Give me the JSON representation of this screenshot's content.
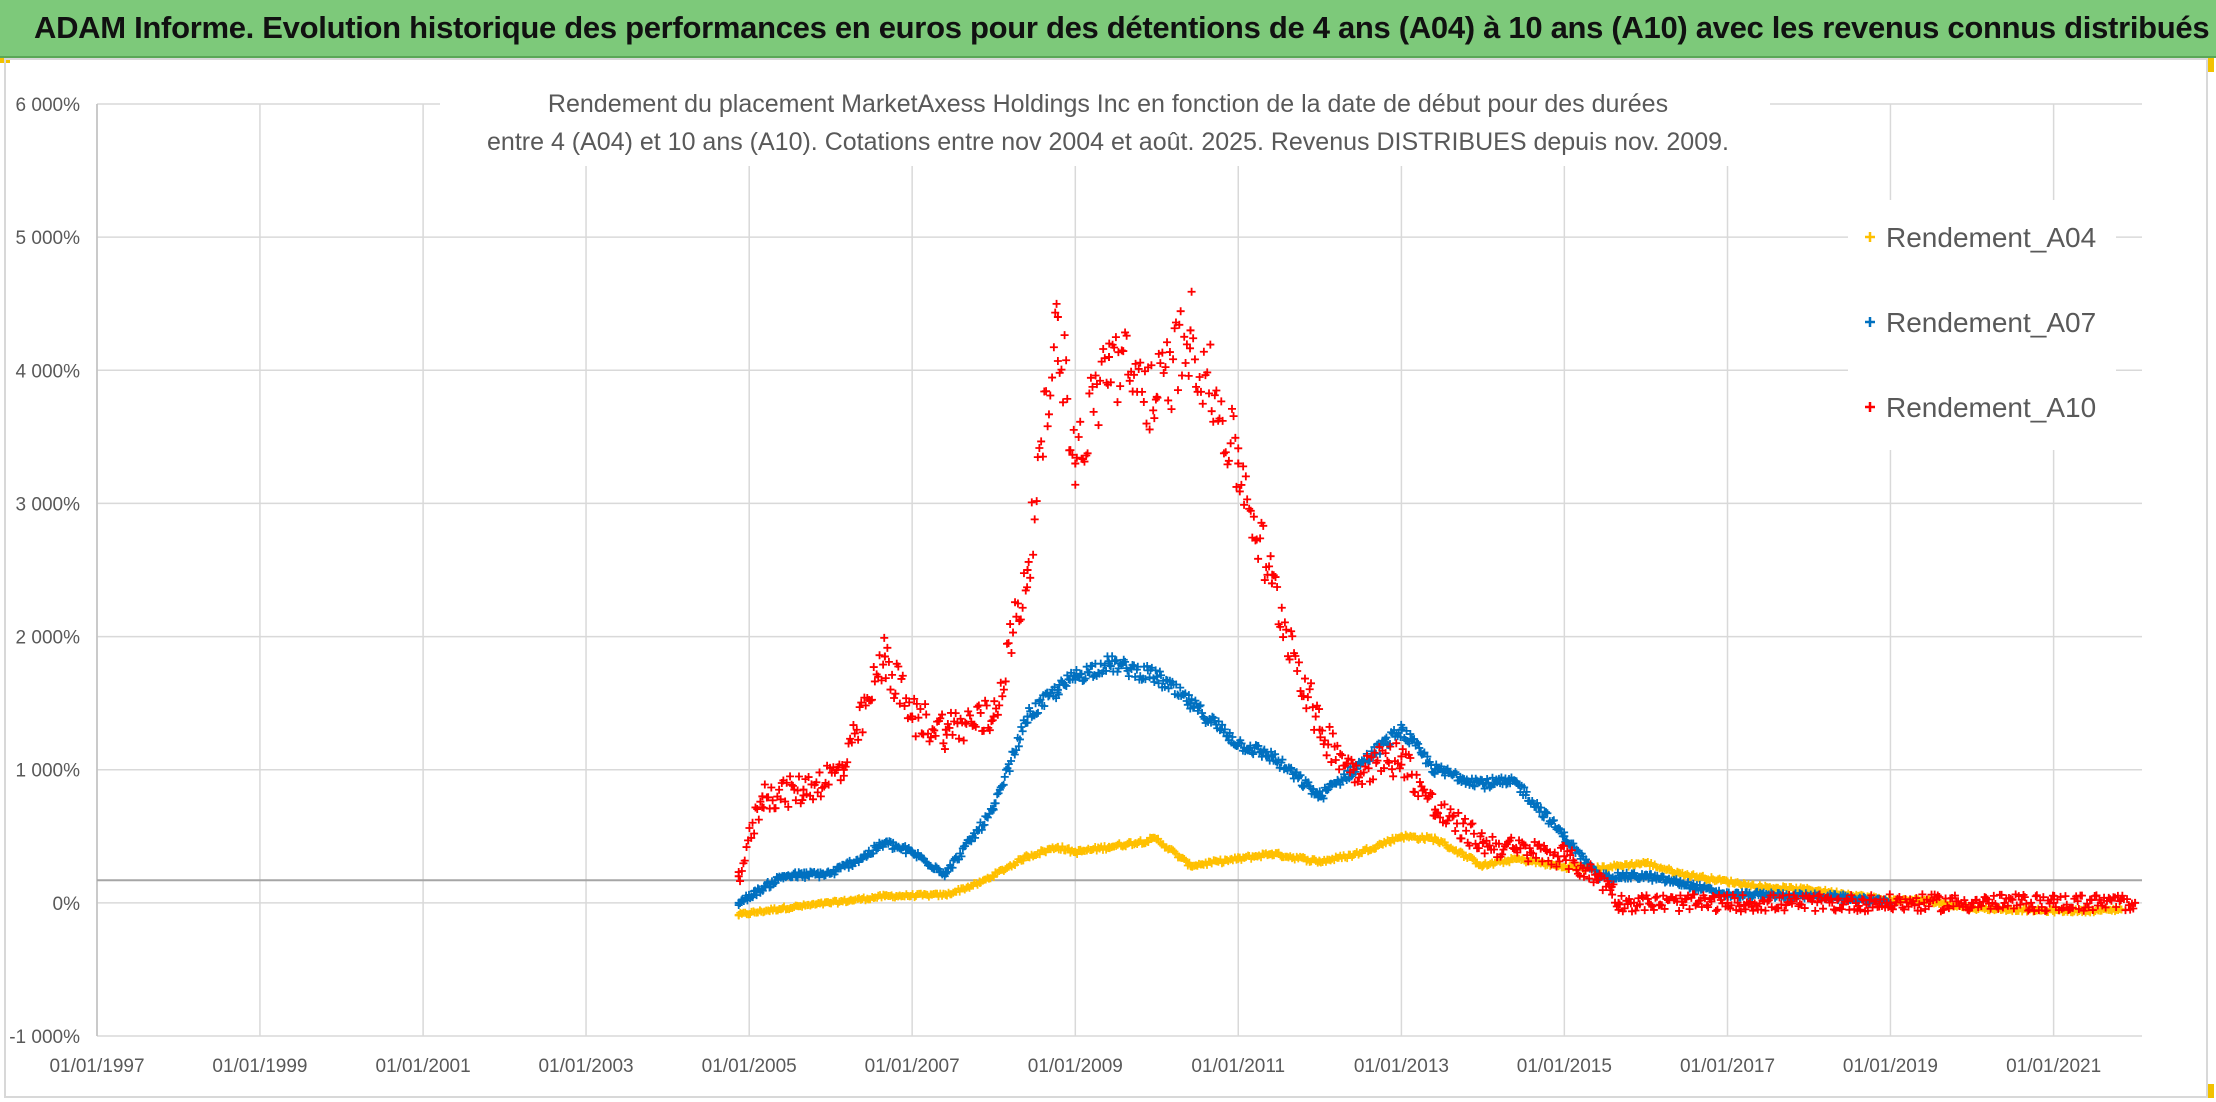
{
  "header": {
    "title": "ADAM Informe. Evolution historique des performances en euros pour des détentions de 4 ans (A04) à 10 ans (A10) avec les revenus connus distribués"
  },
  "chart_data": {
    "type": "scatter",
    "title_lines": [
      "Rendement du placement MarketAxess Holdings Inc en fonction de la date de début pour des durées",
      "entre 4 (A04) et 10 ans (A10). Cotations entre nov 2004 et août. 2025. Revenus DISTRIBUES depuis nov. 2009."
    ],
    "xlabel": "",
    "ylabel": "",
    "x_ticks": [
      "01/01/1997",
      "01/01/1999",
      "01/01/2001",
      "01/01/2003",
      "01/01/2005",
      "01/01/2007",
      "01/01/2009",
      "01/01/2011",
      "01/01/2013",
      "01/01/2015",
      "01/01/2017",
      "01/01/2019",
      "01/01/2021"
    ],
    "x_range": [
      "1997-01-01",
      "2022-02-01"
    ],
    "y_ticks": [
      "-1 000%",
      "0%",
      "1 000%",
      "2 000%",
      "3 000%",
      "4 000%",
      "5 000%",
      "6 000%"
    ],
    "ylim": [
      -1000,
      6000
    ],
    "grid": true,
    "reference_line": 170,
    "legend_position": "top-right",
    "series": [
      {
        "name": "Rendement_A04",
        "color": "#ffc000",
        "x": [
          "2004-11-15",
          "2005-06-01",
          "2006-01-01",
          "2006-09-01",
          "2007-06-01",
          "2007-11-01",
          "2008-06-01",
          "2008-10-15",
          "2009-01-01",
          "2009-06-01",
          "2010-01-01",
          "2010-06-01",
          "2011-01-01",
          "2011-06-01",
          "2012-01-01",
          "2012-06-01",
          "2013-01-01",
          "2013-06-01",
          "2014-01-01",
          "2014-06-01",
          "2015-01-01",
          "2015-06-01",
          "2016-01-01",
          "2016-06-01",
          "2017-01-01",
          "2017-06-01",
          "2018-01-01",
          "2018-06-01",
          "2019-01-01",
          "2019-06-01",
          "2020-01-01",
          "2021-01-01",
          "2021-06-01",
          "2021-11-01"
        ],
        "y": [
          -90,
          -40,
          0,
          50,
          60,
          150,
          350,
          420,
          380,
          420,
          480,
          280,
          330,
          370,
          310,
          360,
          500,
          480,
          280,
          330,
          270,
          260,
          300,
          220,
          160,
          120,
          100,
          70,
          20,
          20,
          -40,
          -60,
          -60,
          -50
        ]
      },
      {
        "name": "Rendement_A07",
        "color": "#0070c0",
        "x": [
          "2004-11-15",
          "2005-06-01",
          "2006-01-01",
          "2006-06-01",
          "2006-09-01",
          "2007-01-01",
          "2007-06-01",
          "2008-01-01",
          "2008-06-01",
          "2008-10-15",
          "2009-01-01",
          "2009-06-01",
          "2010-01-01",
          "2010-06-01",
          "2011-01-01",
          "2011-06-01",
          "2012-01-01",
          "2012-06-01",
          "2013-01-01",
          "2013-06-01",
          "2014-01-01",
          "2014-06-01",
          "2015-01-01",
          "2015-06-01",
          "2016-01-01",
          "2016-06-01",
          "2017-01-01",
          "2017-06-01",
          "2018-01-01",
          "2018-06-01",
          "2019-01-01"
        ],
        "y": [
          0,
          200,
          220,
          350,
          450,
          380,
          220,
          700,
          1400,
          1600,
          1700,
          1800,
          1700,
          1500,
          1200,
          1100,
          800,
          1000,
          1300,
          1000,
          900,
          900,
          500,
          200,
          200,
          150,
          60,
          60,
          50,
          40,
          0
        ]
      },
      {
        "name": "Rendement_A10",
        "color": "#ff0000",
        "x": [
          "2004-11-15",
          "2005-03-01",
          "2005-09-01",
          "2006-03-01",
          "2006-09-01",
          "2007-01-01",
          "2007-06-01",
          "2008-01-01",
          "2008-06-01",
          "2008-10-15",
          "2009-01-01",
          "2009-06-01",
          "2010-01-01",
          "2010-06-01",
          "2011-01-01",
          "2011-06-01",
          "2012-01-01",
          "2012-06-01",
          "2013-01-01",
          "2013-06-01",
          "2014-01-01",
          "2014-06-01",
          "2015-01-01",
          "2015-08-01",
          "2015-09-01",
          "2017-01-01",
          "2019-01-01",
          "2020-01-01",
          "2021-01-01",
          "2022-01-01"
        ],
        "y": [
          200,
          800,
          850,
          1000,
          1850,
          1400,
          1300,
          1400,
          2500,
          4400,
          3300,
          4100,
          3800,
          4300,
          3300,
          2400,
          1300,
          1000,
          1100,
          700,
          450,
          400,
          350,
          120,
          0,
          0,
          0,
          0,
          0,
          0
        ]
      }
    ]
  }
}
